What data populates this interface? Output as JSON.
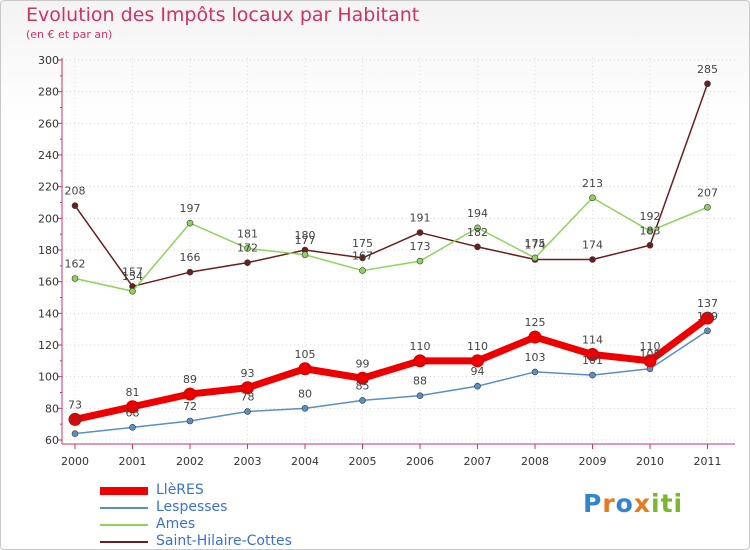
{
  "header": {
    "title": "Evolution des Impôts locaux par Habitant",
    "subtitle": "(en € et par an)"
  },
  "logo": {
    "text": "Proxiti",
    "letters": [
      "P",
      "r",
      "o",
      "x",
      "i",
      "ti"
    ]
  },
  "chart_data": {
    "type": "line",
    "title": "Evolution des Impôts locaux par Habitant",
    "subtitle": "(en € et par an)",
    "categories": [
      "2000",
      "2001",
      "2002",
      "2003",
      "2004",
      "2005",
      "2006",
      "2007",
      "2008",
      "2009",
      "2010",
      "2011"
    ],
    "ylim": [
      60,
      300
    ],
    "yticks": [
      60,
      80,
      100,
      120,
      140,
      160,
      180,
      200,
      220,
      240,
      260,
      280,
      300
    ],
    "grid": true,
    "legend_position": "bottom-left",
    "series": [
      {
        "name": "LlèRES",
        "color": "#ee0000",
        "width": 7,
        "marker": 6,
        "values": [
          73,
          81,
          89,
          93,
          105,
          99,
          110,
          110,
          125,
          114,
          110,
          137
        ]
      },
      {
        "name": "Lespesses",
        "color": "#5b8ec4",
        "width": 1.5,
        "marker": 3,
        "values": [
          64,
          68,
          72,
          78,
          80,
          85,
          88,
          94,
          103,
          101,
          105,
          129
        ]
      },
      {
        "name": "Ames",
        "color": "#8fd45a",
        "width": 1.5,
        "marker": 3,
        "values": [
          162,
          154,
          197,
          181,
          177,
          167,
          173,
          194,
          175,
          213,
          192,
          207
        ]
      },
      {
        "name": "Saint-Hilaire-Cottes",
        "color": "#6b1e1e",
        "width": 1.5,
        "marker": 3,
        "values": [
          208,
          157,
          166,
          172,
          180,
          175,
          191,
          182,
          174,
          174,
          183,
          285
        ]
      }
    ]
  }
}
